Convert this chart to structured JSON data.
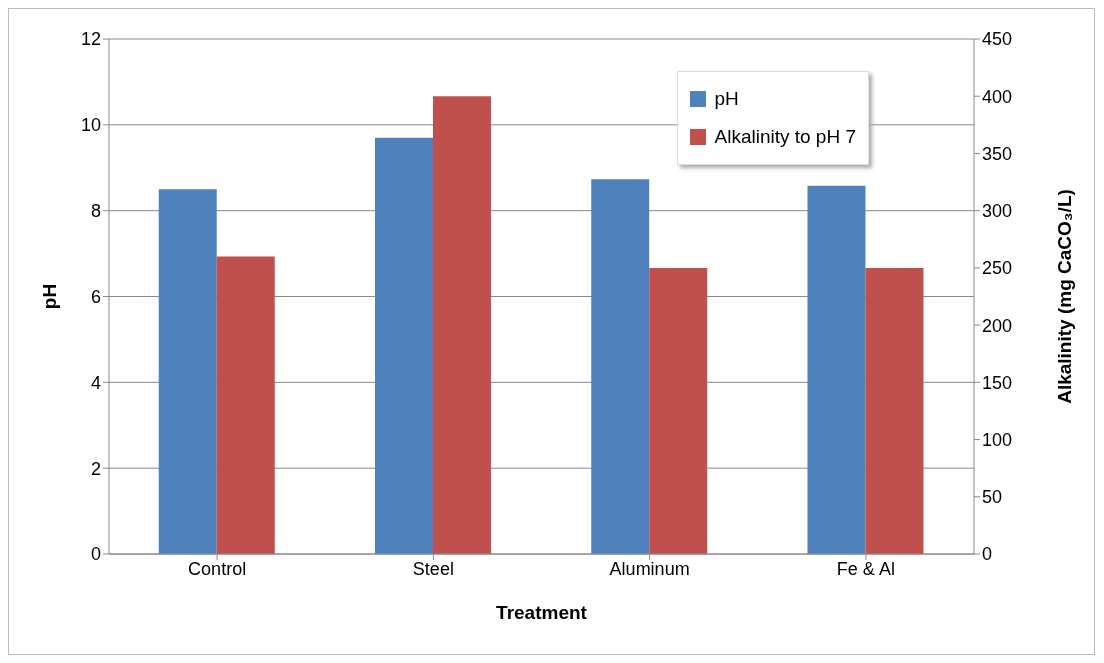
{
  "chart_data": {
    "type": "bar",
    "xlabel": "Treatment",
    "ylabel": "pH",
    "y2label": "Alkalinity (mg CaCO₃/L)",
    "categories": [
      "Control",
      "Steel",
      "Aluminum",
      "Fe & Al"
    ],
    "series": [
      {
        "name": "pH",
        "color": "#4f81bd",
        "values": [
          8.5,
          9.7,
          8.73,
          8.58
        ]
      },
      {
        "name": "Alkalinity to pH 7",
        "color": "#c0504d",
        "values": [
          260,
          400,
          250,
          250
        ],
        "axis": "y2"
      }
    ],
    "ylim": [
      0,
      12
    ],
    "yticks": [
      0,
      2,
      4,
      6,
      8,
      10,
      12
    ],
    "y2lim": [
      0,
      450
    ],
    "y2ticks": [
      0,
      50,
      100,
      150,
      200,
      250,
      300,
      350,
      400,
      450
    ],
    "grid": "y",
    "legend": "top right"
  }
}
